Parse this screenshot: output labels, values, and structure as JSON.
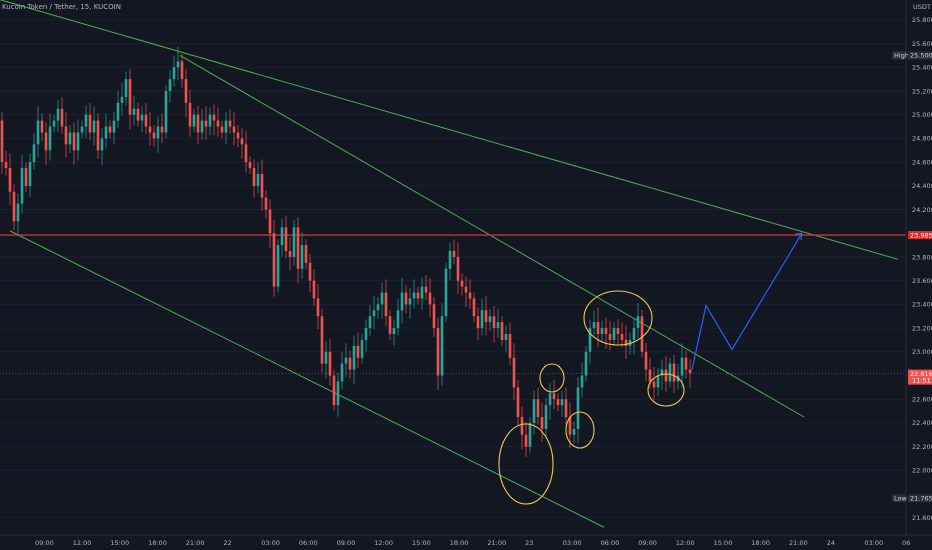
{
  "header": {
    "symbol_line": "Kucoin Token / Tether, 15, KUCOIN"
  },
  "price_axis": {
    "currency": "USDT",
    "ticks": [
      "25.800",
      "25.600",
      "25.400",
      "25.200",
      "25.000",
      "24.800",
      "24.600",
      "24.400",
      "24.200",
      "23.800",
      "23.600",
      "23.400",
      "23.200",
      "23.000",
      "22.600",
      "22.400",
      "22.200",
      "22.000",
      "21.600"
    ],
    "ylim": [
      21.48,
      25.9
    ]
  },
  "time_axis": {
    "ticks": [
      "09:00",
      "12:00",
      "15:00",
      "18:00",
      "21:00",
      "22",
      "03:00",
      "06:00",
      "09:00",
      "12:00",
      "15:00",
      "18:00",
      "21:00",
      "23",
      "03:00",
      "06:00",
      "09:00",
      "12:00",
      "15:00",
      "18:00",
      "21:00",
      "24",
      "03:00",
      "06"
    ]
  },
  "tags": {
    "high": {
      "label": "High",
      "value": "25.500",
      "price": 25.5
    },
    "resistance": {
      "value": "23.985",
      "price": 23.985
    },
    "current": {
      "value": "22.816",
      "sub": "11:51",
      "price": 22.816
    },
    "low": {
      "label": "Low",
      "value": "21.765",
      "price": 21.765
    }
  },
  "colors": {
    "background": "#131722",
    "up": "#26a69a",
    "down": "#ef5350",
    "trendline": "#4caf50",
    "resistance": "#d32f2f",
    "projection": "#2962ff",
    "highlight": "#f2c94c",
    "axis_text": "#b2b5be"
  },
  "chart_data": {
    "type": "candlestick",
    "interval": "15",
    "path_points": [
      [
        0,
        24.95
      ],
      [
        4,
        24.6
      ],
      [
        8,
        24.55
      ],
      [
        12,
        24.35
      ],
      [
        16,
        24.1
      ],
      [
        20,
        24.25
      ],
      [
        24,
        24.55
      ],
      [
        28,
        24.4
      ],
      [
        32,
        24.6
      ],
      [
        36,
        24.75
      ],
      [
        40,
        24.95
      ],
      [
        44,
        24.85
      ],
      [
        48,
        24.7
      ],
      [
        52,
        24.9
      ],
      [
        56,
        24.95
      ],
      [
        60,
        25.05
      ],
      [
        64,
        24.9
      ],
      [
        68,
        24.75
      ],
      [
        72,
        24.85
      ],
      [
        76,
        24.7
      ],
      [
        80,
        24.85
      ],
      [
        84,
        24.9
      ],
      [
        88,
        25.0
      ],
      [
        92,
        24.85
      ],
      [
        96,
        24.95
      ],
      [
        100,
        24.7
      ],
      [
        104,
        24.8
      ],
      [
        108,
        24.9
      ],
      [
        112,
        24.85
      ],
      [
        116,
        24.95
      ],
      [
        120,
        25.1
      ],
      [
        124,
        25.15
      ],
      [
        128,
        25.3
      ],
      [
        132,
        25.0
      ],
      [
        136,
        25.05
      ],
      [
        140,
        24.95
      ],
      [
        144,
        25.0
      ],
      [
        148,
        24.9
      ],
      [
        152,
        24.85
      ],
      [
        156,
        24.8
      ],
      [
        160,
        24.9
      ],
      [
        164,
        24.85
      ],
      [
        168,
        25.2
      ],
      [
        172,
        25.3
      ],
      [
        176,
        25.4
      ],
      [
        180,
        25.45
      ],
      [
        184,
        25.3
      ],
      [
        188,
        25.1
      ],
      [
        192,
        24.9
      ],
      [
        196,
        25.0
      ],
      [
        200,
        24.85
      ],
      [
        204,
        24.95
      ],
      [
        208,
        24.9
      ],
      [
        212,
        25.0
      ],
      [
        216,
        24.95
      ],
      [
        220,
        24.9
      ],
      [
        224,
        24.85
      ],
      [
        228,
        24.95
      ],
      [
        232,
        24.9
      ],
      [
        236,
        24.85
      ],
      [
        240,
        24.8
      ],
      [
        244,
        24.75
      ],
      [
        248,
        24.6
      ],
      [
        252,
        24.55
      ],
      [
        256,
        24.4
      ],
      [
        260,
        24.5
      ],
      [
        264,
        24.3
      ],
      [
        268,
        24.2
      ],
      [
        272,
        24.0
      ],
      [
        276,
        23.55
      ],
      [
        280,
        23.9
      ],
      [
        284,
        24.05
      ],
      [
        288,
        23.85
      ],
      [
        292,
        23.8
      ],
      [
        296,
        24.05
      ],
      [
        300,
        23.7
      ],
      [
        304,
        23.9
      ],
      [
        308,
        23.75
      ],
      [
        312,
        23.6
      ],
      [
        316,
        23.45
      ],
      [
        320,
        23.3
      ],
      [
        324,
        22.9
      ],
      [
        328,
        23.0
      ],
      [
        332,
        22.8
      ],
      [
        336,
        22.55
      ],
      [
        340,
        22.75
      ],
      [
        344,
        22.9
      ],
      [
        348,
        22.95
      ],
      [
        352,
        22.85
      ],
      [
        356,
        23.05
      ],
      [
        360,
        22.95
      ],
      [
        364,
        23.1
      ],
      [
        368,
        23.2
      ],
      [
        372,
        23.3
      ],
      [
        376,
        23.35
      ],
      [
        380,
        23.4
      ],
      [
        384,
        23.5
      ],
      [
        388,
        23.3
      ],
      [
        392,
        23.15
      ],
      [
        396,
        23.2
      ],
      [
        400,
        23.35
      ],
      [
        404,
        23.5
      ],
      [
        408,
        23.4
      ],
      [
        412,
        23.45
      ],
      [
        416,
        23.5
      ],
      [
        420,
        23.45
      ],
      [
        424,
        23.55
      ],
      [
        428,
        23.5
      ],
      [
        432,
        23.4
      ],
      [
        436,
        23.2
      ],
      [
        440,
        22.8
      ],
      [
        444,
        23.3
      ],
      [
        448,
        23.7
      ],
      [
        452,
        23.85
      ],
      [
        456,
        23.8
      ],
      [
        460,
        23.6
      ],
      [
        464,
        23.55
      ],
      [
        468,
        23.5
      ],
      [
        472,
        23.45
      ],
      [
        476,
        23.3
      ],
      [
        480,
        23.2
      ],
      [
        484,
        23.35
      ],
      [
        488,
        23.25
      ],
      [
        492,
        23.3
      ],
      [
        496,
        23.2
      ],
      [
        500,
        23.25
      ],
      [
        504,
        23.1
      ],
      [
        508,
        23.15
      ],
      [
        512,
        22.95
      ],
      [
        516,
        22.7
      ],
      [
        520,
        22.45
      ],
      [
        524,
        22.3
      ],
      [
        528,
        22.2
      ],
      [
        532,
        22.4
      ],
      [
        536,
        22.6
      ],
      [
        540,
        22.45
      ],
      [
        544,
        22.35
      ],
      [
        548,
        22.55
      ],
      [
        552,
        22.65
      ],
      [
        556,
        22.6
      ],
      [
        560,
        22.55
      ],
      [
        564,
        22.6
      ],
      [
        568,
        22.45
      ],
      [
        572,
        22.3
      ],
      [
        576,
        22.35
      ],
      [
        580,
        22.7
      ],
      [
        584,
        22.8
      ],
      [
        588,
        23.0
      ],
      [
        592,
        23.2
      ],
      [
        596,
        23.25
      ],
      [
        600,
        23.15
      ],
      [
        604,
        23.2
      ],
      [
        608,
        23.15
      ],
      [
        612,
        23.1
      ],
      [
        616,
        23.2
      ],
      [
        620,
        23.15
      ],
      [
        624,
        23.1
      ],
      [
        628,
        23.05
      ],
      [
        632,
        23.1
      ],
      [
        636,
        23.2
      ],
      [
        640,
        23.3
      ],
      [
        644,
        23.0
      ],
      [
        648,
        22.85
      ],
      [
        652,
        22.75
      ],
      [
        656,
        22.7
      ],
      [
        660,
        22.8
      ],
      [
        664,
        22.85
      ],
      [
        668,
        22.75
      ],
      [
        672,
        22.9
      ],
      [
        676,
        22.75
      ],
      [
        680,
        22.8
      ],
      [
        684,
        22.95
      ],
      [
        688,
        22.85
      ],
      [
        692,
        22.82
      ]
    ],
    "trendlines": [
      {
        "name": "upper",
        "from": [
          0,
          25.97
        ],
        "to": [
          898,
          23.78
        ]
      },
      {
        "name": "middle",
        "from": [
          180,
          25.5
        ],
        "to": [
          804,
          22.45
        ]
      },
      {
        "name": "lower",
        "from": [
          10,
          24.02
        ],
        "to": [
          604,
          21.52
        ]
      }
    ],
    "projection": [
      [
        692,
        22.85
      ],
      [
        706,
        23.39
      ],
      [
        732,
        23.02
      ],
      [
        802,
        24.0
      ]
    ],
    "highlights": [
      {
        "cx": 526,
        "cy": 464,
        "rx": 27,
        "ry": 40
      },
      {
        "cx": 552,
        "cy": 378,
        "rx": 12,
        "ry": 14
      },
      {
        "cx": 580,
        "cy": 430,
        "rx": 14,
        "ry": 18
      },
      {
        "cx": 618,
        "cy": 318,
        "rx": 34,
        "ry": 27
      },
      {
        "cx": 666,
        "cy": 390,
        "rx": 18,
        "ry": 16
      }
    ]
  }
}
